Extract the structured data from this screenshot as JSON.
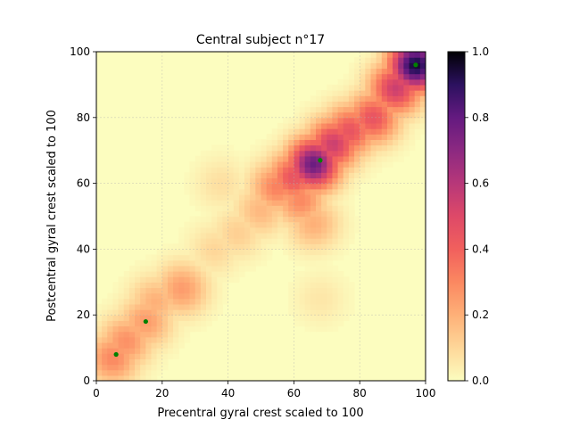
{
  "chart_data": {
    "type": "heatmap",
    "title": "Central subject n°17",
    "xlabel": "Precentral gyral crest scaled to 100",
    "ylabel": "Postcentral gyral crest scaled to 100",
    "xlim": [
      0,
      100
    ],
    "ylim": [
      0,
      100
    ],
    "x_ticks": [
      "0",
      "20",
      "40",
      "60",
      "80",
      "100"
    ],
    "y_ticks": [
      "0",
      "20",
      "40",
      "60",
      "80",
      "100"
    ],
    "grid": true,
    "colormap": "magma_r",
    "colorbar": {
      "range": [
        0,
        1
      ],
      "ticks": [
        "0.0",
        "0.2",
        "0.4",
        "0.6",
        "0.8",
        "1.0"
      ]
    },
    "density_peaks": [
      {
        "x": 97,
        "y": 96,
        "value": 0.95
      },
      {
        "x": 91,
        "y": 89,
        "value": 0.55
      },
      {
        "x": 84,
        "y": 80,
        "value": 0.45
      },
      {
        "x": 77,
        "y": 76,
        "value": 0.45
      },
      {
        "x": 72,
        "y": 72,
        "value": 0.55
      },
      {
        "x": 66,
        "y": 66,
        "value": 0.78
      },
      {
        "x": 60,
        "y": 62,
        "value": 0.45
      },
      {
        "x": 55,
        "y": 59,
        "value": 0.32
      },
      {
        "x": 62,
        "y": 55,
        "value": 0.3
      },
      {
        "x": 66,
        "y": 48,
        "value": 0.2
      },
      {
        "x": 50,
        "y": 52,
        "value": 0.18
      },
      {
        "x": 43,
        "y": 45,
        "value": 0.12
      },
      {
        "x": 36,
        "y": 40,
        "value": 0.1
      },
      {
        "x": 26,
        "y": 28,
        "value": 0.25
      },
      {
        "x": 18,
        "y": 24,
        "value": 0.2
      },
      {
        "x": 15,
        "y": 18,
        "value": 0.25
      },
      {
        "x": 9,
        "y": 12,
        "value": 0.28
      },
      {
        "x": 5,
        "y": 7,
        "value": 0.3
      },
      {
        "x": 38,
        "y": 60,
        "value": 0.08
      },
      {
        "x": 68,
        "y": 25,
        "value": 0.06
      }
    ],
    "points": [
      {
        "x": 6,
        "y": 8
      },
      {
        "x": 15,
        "y": 18
      },
      {
        "x": 68,
        "y": 67
      },
      {
        "x": 97,
        "y": 96
      }
    ],
    "point_color": "#008000"
  }
}
